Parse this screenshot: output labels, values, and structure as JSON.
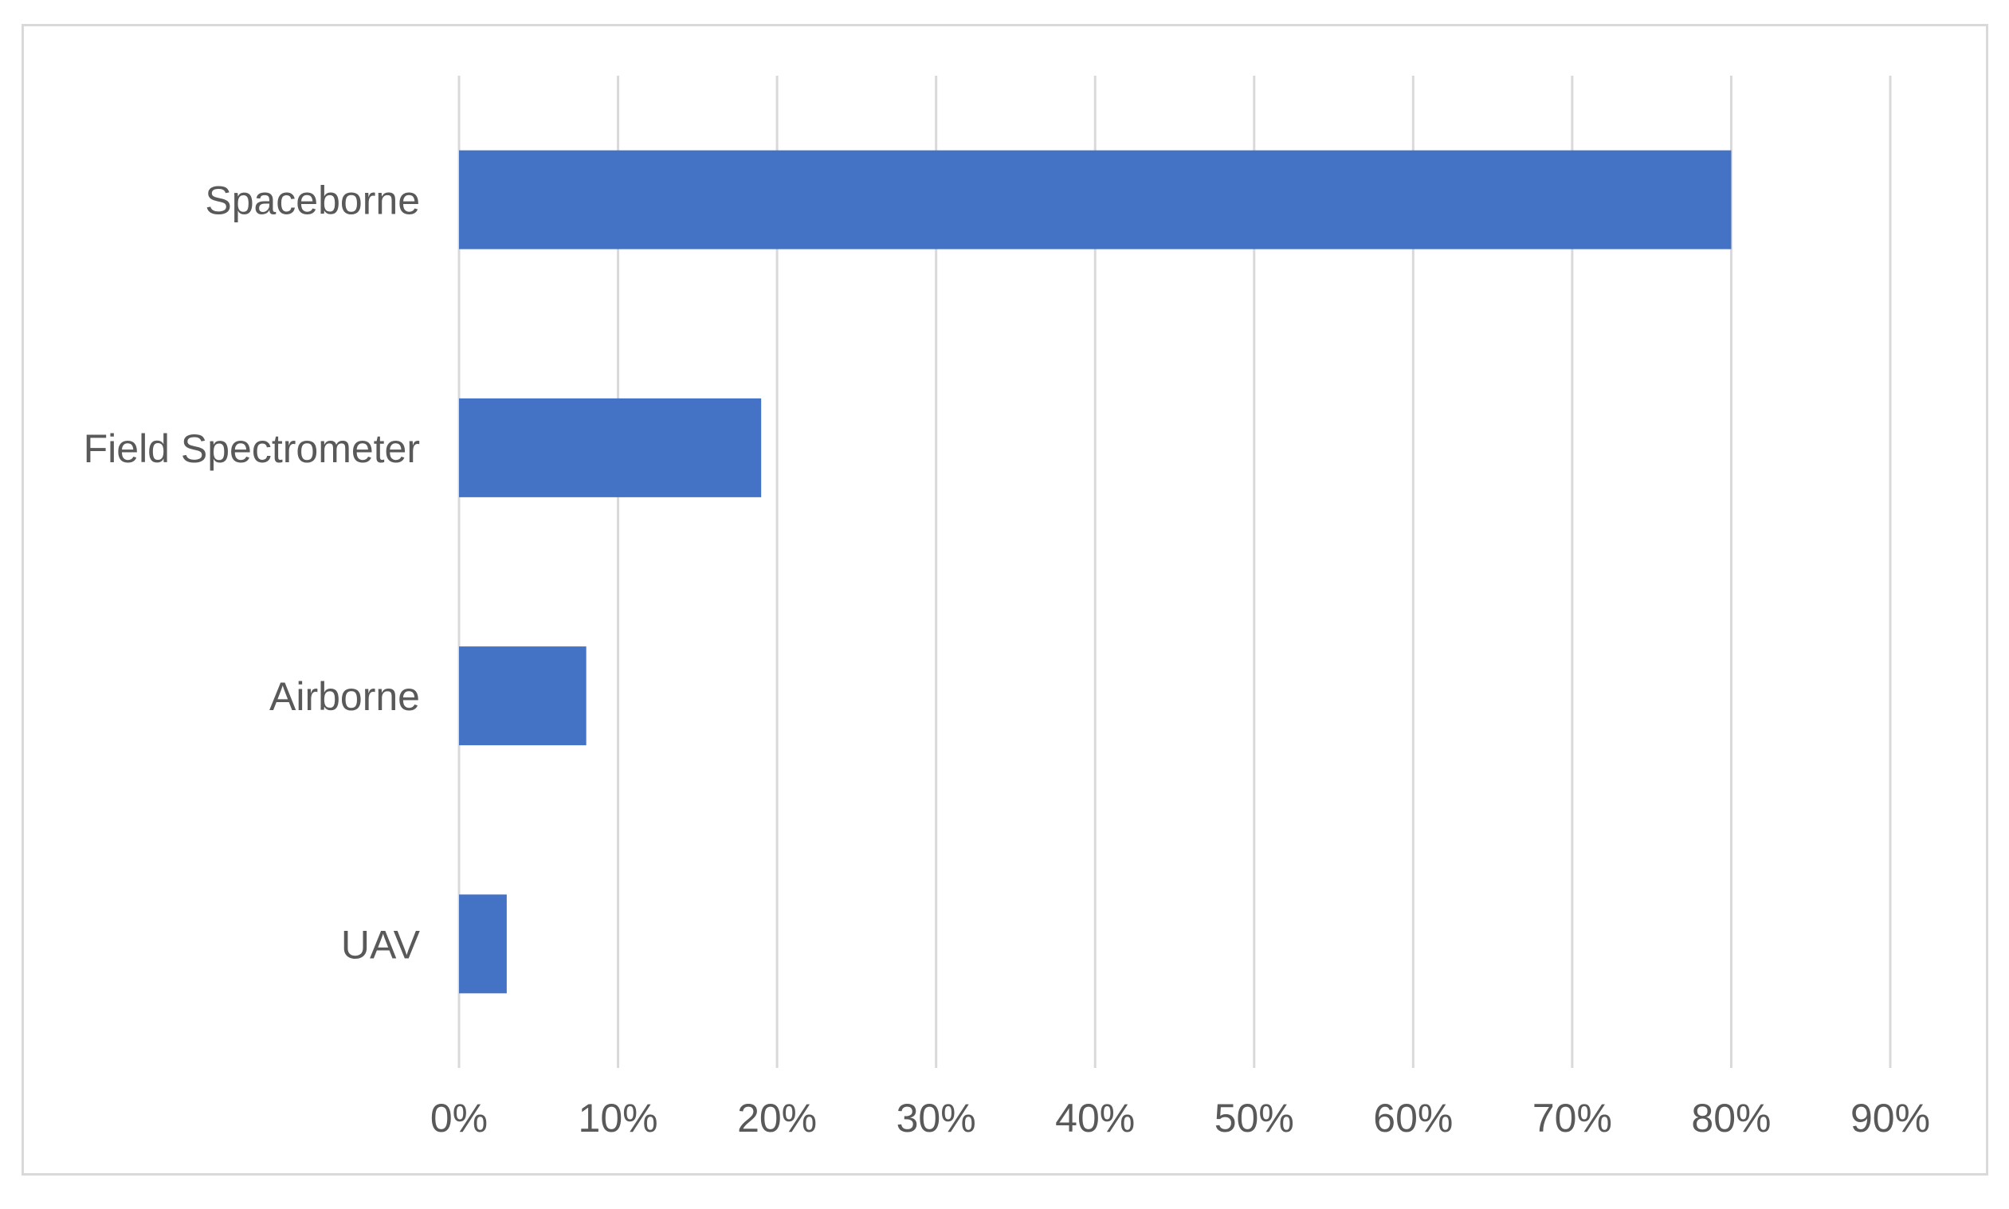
{
  "chart_data": {
    "type": "bar",
    "orientation": "horizontal",
    "categories": [
      "Spaceborne",
      "Field Spectrometer",
      "Airborne",
      "UAV"
    ],
    "values": [
      80,
      19,
      8,
      3
    ],
    "value_unit": "%",
    "xlim": [
      0,
      90
    ],
    "x_ticks": [
      "0%",
      "10%",
      "20%",
      "30%",
      "40%",
      "50%",
      "60%",
      "70%",
      "80%",
      "90%"
    ],
    "title": "",
    "xlabel": "",
    "ylabel": "",
    "grid": "vertical",
    "legend": "none",
    "bar_color": "#4472c4",
    "grid_color": "#d9d9d9",
    "text_color": "#595959"
  }
}
